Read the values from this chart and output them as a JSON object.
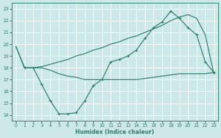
{
  "line1_x": [
    0,
    1,
    2,
    3,
    4,
    5,
    6,
    7,
    8,
    9,
    10,
    11,
    12,
    13,
    14,
    15,
    16,
    17,
    18,
    19,
    20,
    21,
    22,
    23
  ],
  "line1_y": [
    19.8,
    18.0,
    18.0,
    18.1,
    18.3,
    18.5,
    18.7,
    19.0,
    19.2,
    19.5,
    19.7,
    20.0,
    20.2,
    20.5,
    20.7,
    21.0,
    21.3,
    21.6,
    22.0,
    22.3,
    22.5,
    22.2,
    20.8,
    17.5
  ],
  "line2_x": [
    0,
    1,
    2,
    3,
    4,
    5,
    6,
    7,
    8,
    9,
    10,
    11,
    12,
    13,
    14,
    15,
    16,
    17,
    18,
    19,
    20,
    21,
    22,
    23
  ],
  "line2_y": [
    19.8,
    18.0,
    18.0,
    18.0,
    17.8,
    17.5,
    17.3,
    17.2,
    17.0,
    17.0,
    17.0,
    17.0,
    17.0,
    17.0,
    17.0,
    17.1,
    17.2,
    17.3,
    17.4,
    17.5,
    17.5,
    17.5,
    17.5,
    17.6
  ],
  "line3_x": [
    1,
    2,
    3,
    4,
    5,
    6,
    7,
    8,
    9,
    10,
    11,
    12,
    13,
    14,
    15,
    16,
    17,
    18,
    19,
    20,
    21,
    22,
    23
  ],
  "line3_y": [
    18.0,
    18.0,
    16.6,
    15.2,
    14.1,
    14.1,
    14.2,
    15.2,
    16.5,
    17.0,
    18.5,
    18.7,
    19.0,
    19.5,
    20.5,
    21.4,
    21.9,
    22.8,
    22.2,
    21.4,
    20.8,
    18.5,
    17.6
  ],
  "line_color": "#2e7d6b",
  "bg_color": "#cde8e8",
  "grid_color": "#b0d4d4",
  "xlabel": "Humidex (Indice chaleur)",
  "ylim": [
    13.5,
    23.5
  ],
  "xlim": [
    -0.5,
    23.5
  ],
  "yticks": [
    14,
    15,
    16,
    17,
    18,
    19,
    20,
    21,
    22,
    23
  ],
  "xticks": [
    0,
    1,
    2,
    3,
    4,
    5,
    6,
    7,
    8,
    9,
    10,
    11,
    12,
    13,
    14,
    15,
    16,
    17,
    18,
    19,
    20,
    21,
    22,
    23
  ],
  "xtick_labels": [
    "0",
    "1",
    "2",
    "3",
    "4",
    "5",
    "6",
    "7",
    "8",
    "9",
    "10",
    "11",
    "12",
    "13",
    "14",
    "15",
    "16",
    "17",
    "18",
    "19",
    "20",
    "21",
    "22",
    "23"
  ]
}
